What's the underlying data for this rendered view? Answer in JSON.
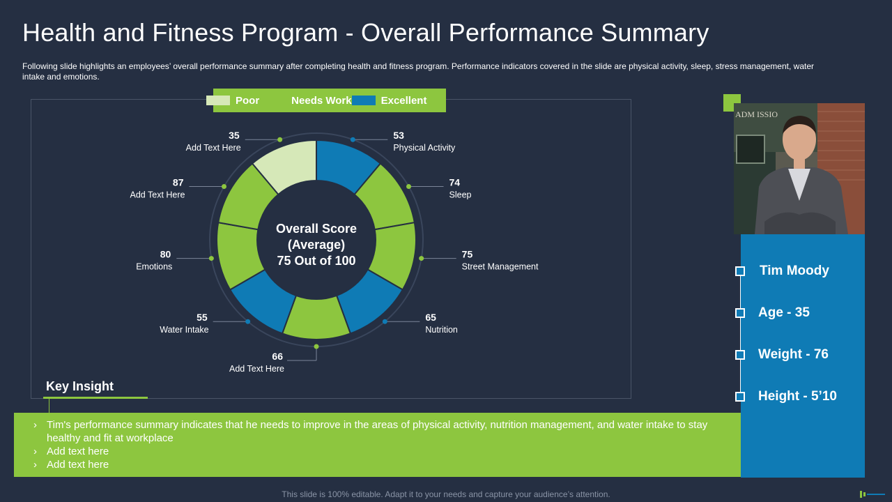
{
  "slide": {
    "title": "Health and Fitness Program - Overall Performance Summary",
    "subtitle": "Following slide highlights an employees’ overall performance  summary after completing health and fitness program. Performance  indicators covered  in the slide are physical activity, sleep, stress management,  water intake and emotions.",
    "footer": "This slide is 100% editable. Adapt it to your needs and capture your audience’s attention."
  },
  "legend": [
    {
      "label": "Poor",
      "color": "#d6e8b8"
    },
    {
      "label": "Needs Work",
      "color": "#8dc63f"
    },
    {
      "label": "Excellent",
      "color": "#0f7bb5"
    }
  ],
  "chart_data": {
    "type": "pie",
    "center_text": [
      "Overall Score",
      "(Average)",
      "75 Out of 100"
    ],
    "segments": [
      {
        "value": 53,
        "label": "Physical Activity",
        "rating": "Excellent",
        "color": "#0f7bb5"
      },
      {
        "value": 74,
        "label": "Sleep",
        "rating": "Needs Work",
        "color": "#8dc63f"
      },
      {
        "value": 75,
        "label": "Street Management",
        "rating": "Needs Work",
        "color": "#8dc63f"
      },
      {
        "value": 65,
        "label": "Nutrition",
        "rating": "Excellent",
        "color": "#0f7bb5"
      },
      {
        "value": 66,
        "label": "Add Text Here",
        "rating": "Needs Work",
        "color": "#8dc63f"
      },
      {
        "value": 55,
        "label": "Water Intake",
        "rating": "Excellent",
        "color": "#0f7bb5"
      },
      {
        "value": 80,
        "label": "Emotions",
        "rating": "Needs Work",
        "color": "#8dc63f"
      },
      {
        "value": 87,
        "label": "Add Text Here",
        "rating": "Needs Work",
        "color": "#8dc63f"
      },
      {
        "value": 35,
        "label": "Add Text Here",
        "rating": "Poor",
        "color": "#d6e8b8"
      }
    ]
  },
  "key_insight": {
    "title": "Key Insight",
    "items": [
      "Tim's performance summary indicates that he needs to improve in the areas of physical activity, nutrition management, and water intake to stay healthy and fit at workplace",
      "Add text here",
      "Add text here"
    ]
  },
  "profile": {
    "name": "Tim Moody",
    "age": "Age - 35",
    "weight": "Weight - 76",
    "height": "Height - 5’10",
    "photo_sign_text": "ADM ISSIO"
  },
  "colors": {
    "background": "#252f42",
    "green": "#8dc63f",
    "blue": "#0f7bb5",
    "light_green": "#d6e8b8"
  }
}
